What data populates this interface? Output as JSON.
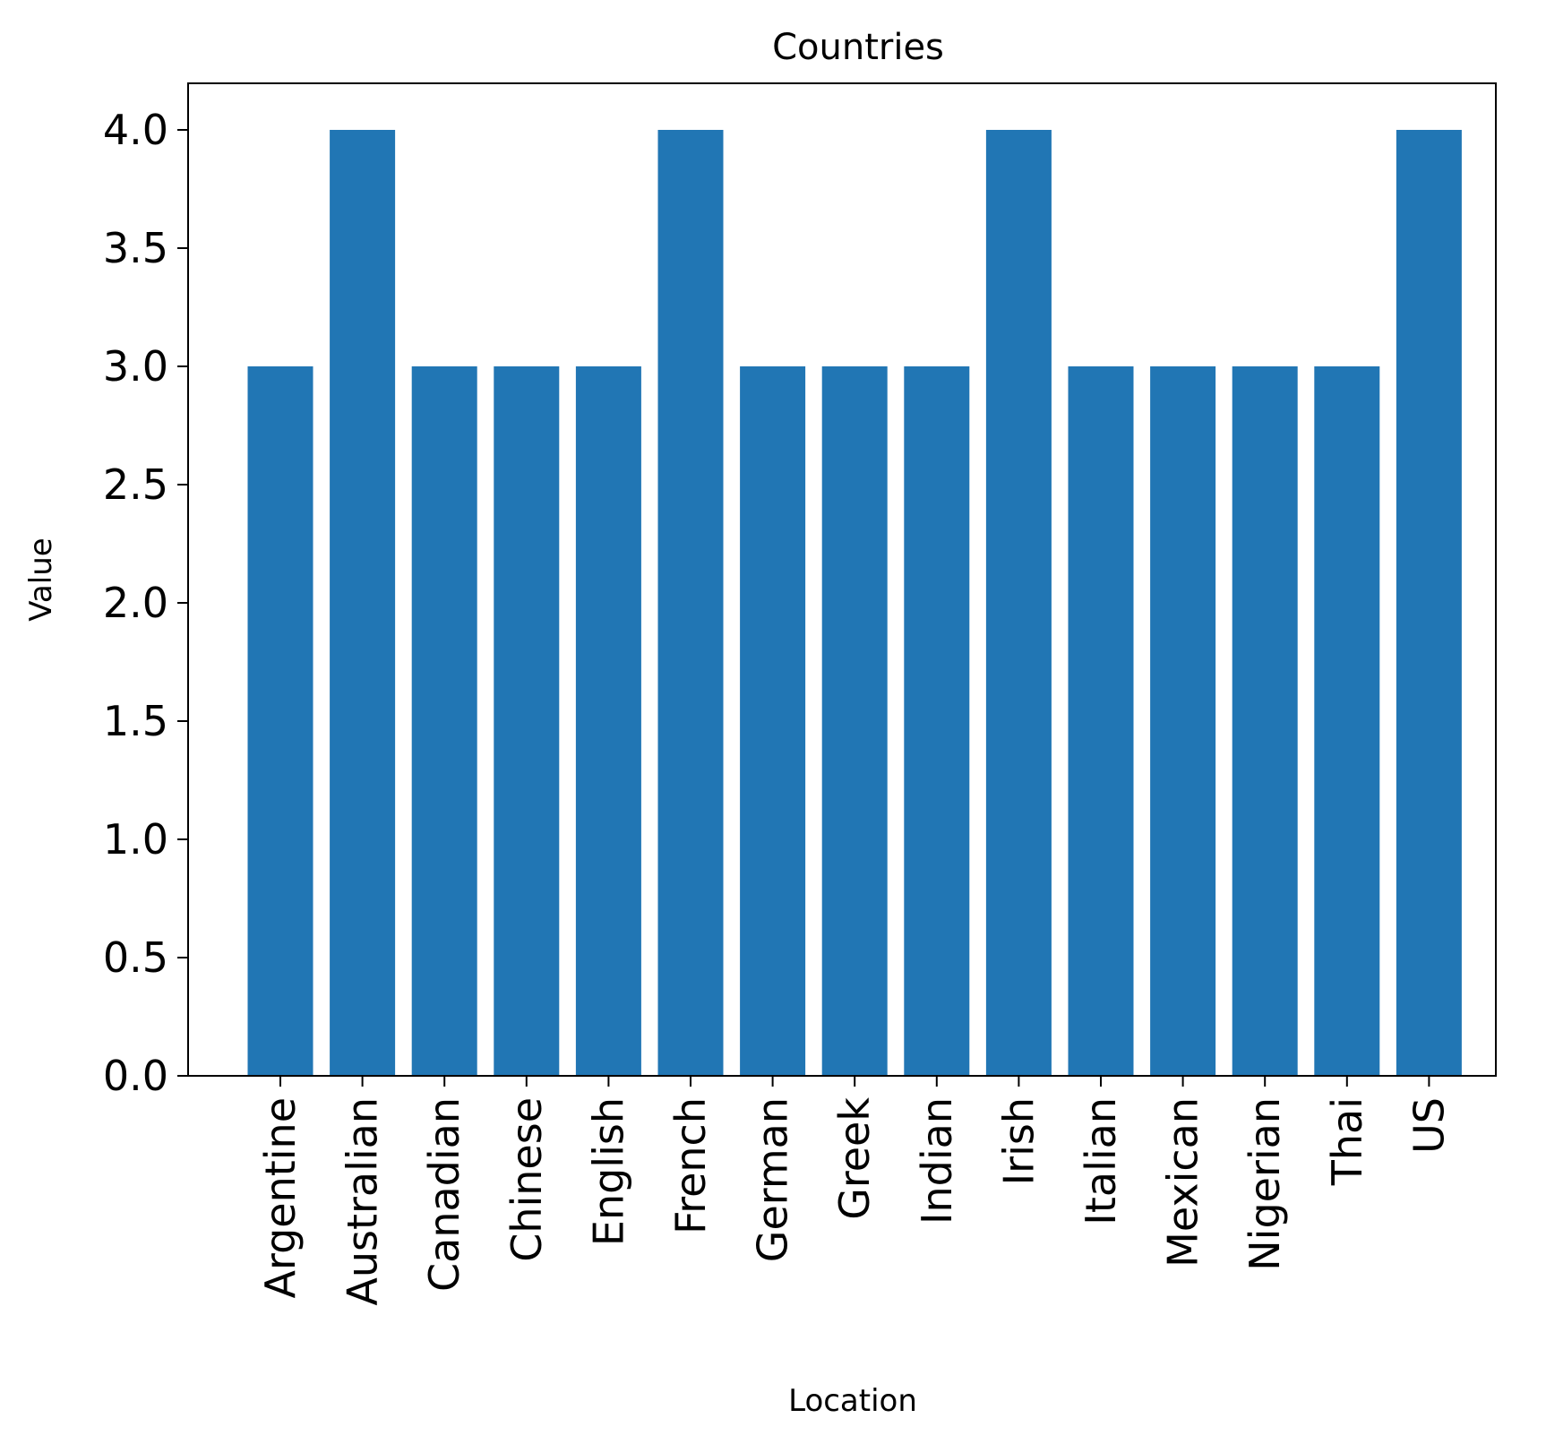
{
  "chart_data": {
    "type": "bar",
    "title": "Countries",
    "xlabel": "Location",
    "ylabel": "Value",
    "categories": [
      "Argentine",
      "Australian",
      "Canadian",
      "Chinese",
      "English",
      "French",
      "German",
      "Greek",
      "Indian",
      "Irish",
      "Italian",
      "Mexican",
      "Nigerian",
      "Thai",
      "US"
    ],
    "values": [
      3,
      4,
      3,
      3,
      3,
      4,
      3,
      3,
      3,
      4,
      3,
      3,
      3,
      3,
      4
    ],
    "ylim": [
      0,
      4.2
    ],
    "yticks": [
      "0.0",
      "0.5",
      "1.0",
      "1.5",
      "2.0",
      "2.5",
      "3.0",
      "3.5",
      "4.0"
    ],
    "bar_color": "#2176b4",
    "grid": false,
    "legend": "none"
  }
}
